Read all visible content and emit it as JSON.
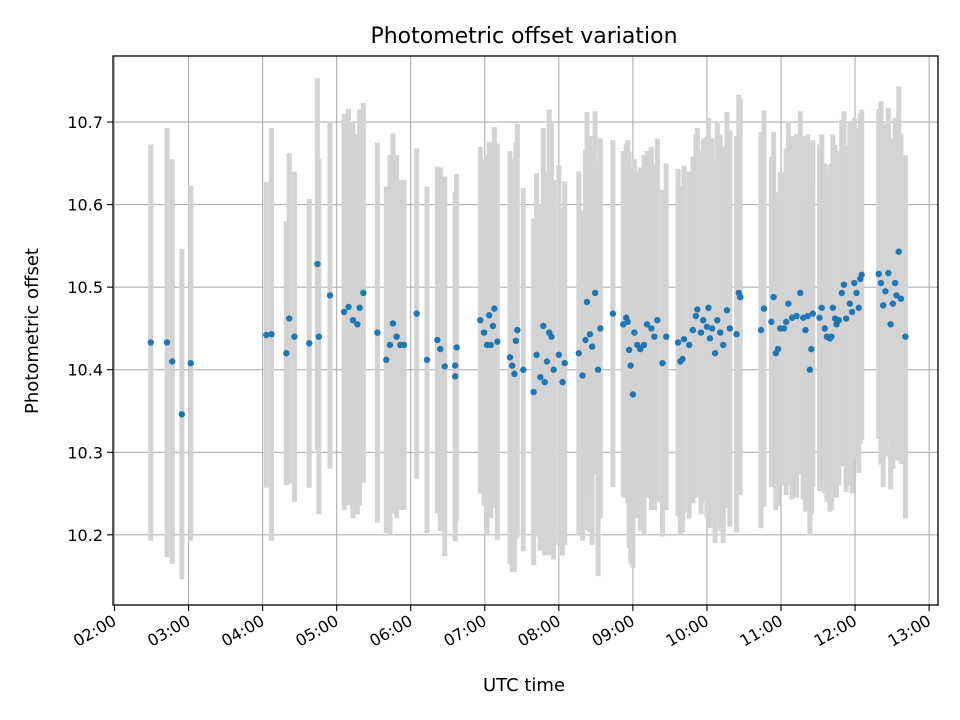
{
  "chart_data": {
    "type": "scatter",
    "title": "Photometric offset variation",
    "xlabel": "UTC time",
    "ylabel": "Photometric offset",
    "grid": true,
    "legend": "none",
    "x_unit": "hours UTC",
    "xlim": [
      1.98,
      13.12
    ],
    "ylim": [
      10.115,
      10.78
    ],
    "xticks": [
      {
        "value": 2,
        "label": "02:00"
      },
      {
        "value": 3,
        "label": "03:00"
      },
      {
        "value": 4,
        "label": "04:00"
      },
      {
        "value": 5,
        "label": "05:00"
      },
      {
        "value": 6,
        "label": "06:00"
      },
      {
        "value": 7,
        "label": "07:00"
      },
      {
        "value": 8,
        "label": "08:00"
      },
      {
        "value": 9,
        "label": "09:00"
      },
      {
        "value": 10,
        "label": "10:00"
      },
      {
        "value": 11,
        "label": "11:00"
      },
      {
        "value": 12,
        "label": "12:00"
      },
      {
        "value": 13,
        "label": "13:00"
      }
    ],
    "yticks": [
      {
        "value": 10.2,
        "label": "10.2"
      },
      {
        "value": 10.3,
        "label": "10.3"
      },
      {
        "value": 10.4,
        "label": "10.4"
      },
      {
        "value": 10.5,
        "label": "10.5"
      },
      {
        "value": 10.6,
        "label": "10.6"
      },
      {
        "value": 10.7,
        "label": "10.7"
      }
    ],
    "colors": {
      "points": "#1f77b4",
      "errorbars": "#d3d3d3",
      "grid": "#b0b0b0",
      "axes": "#000000"
    },
    "series": [
      {
        "name": "Photometric offset",
        "points": [
          [
            2.49,
            10.433,
            0.24
          ],
          [
            2.71,
            10.433,
            0.26
          ],
          [
            2.78,
            10.41,
            0.245
          ],
          [
            2.91,
            10.346,
            0.2
          ],
          [
            3.03,
            10.408,
            0.215
          ],
          [
            4.05,
            10.442,
            0.185
          ],
          [
            4.12,
            10.443,
            0.25
          ],
          [
            4.32,
            10.42,
            0.16
          ],
          [
            4.36,
            10.462,
            0.2
          ],
          [
            4.43,
            10.44,
            0.2
          ],
          [
            4.63,
            10.432,
            0.175
          ],
          [
            4.74,
            10.528,
            0.225
          ],
          [
            4.76,
            10.44,
            0.215
          ],
          [
            4.91,
            10.49,
            0.21
          ],
          [
            5.1,
            10.47,
            0.24
          ],
          [
            5.16,
            10.476,
            0.24
          ],
          [
            5.22,
            10.46,
            0.24
          ],
          [
            5.28,
            10.455,
            0.23
          ],
          [
            5.31,
            10.475,
            0.24
          ],
          [
            5.36,
            10.493,
            0.23
          ],
          [
            5.55,
            10.445,
            0.23
          ],
          [
            5.67,
            10.412,
            0.21
          ],
          [
            5.72,
            10.43,
            0.23
          ],
          [
            5.76,
            10.456,
            0.23
          ],
          [
            5.81,
            10.44,
            0.22
          ],
          [
            5.86,
            10.43,
            0.2
          ],
          [
            5.91,
            10.43,
            0.2
          ],
          [
            6.08,
            10.468,
            0.2
          ],
          [
            6.22,
            10.412,
            0.21
          ],
          [
            6.36,
            10.436,
            0.21
          ],
          [
            6.4,
            10.425,
            0.22
          ],
          [
            6.46,
            10.404,
            0.23
          ],
          [
            6.6,
            10.392,
            0.2
          ],
          [
            6.6,
            10.405,
            0.21
          ],
          [
            6.62,
            10.427,
            0.21
          ],
          [
            6.94,
            10.46,
            0.21
          ],
          [
            6.99,
            10.445,
            0.21
          ],
          [
            7.03,
            10.43,
            0.23
          ],
          [
            7.06,
            10.466,
            0.21
          ],
          [
            7.08,
            10.43,
            0.21
          ],
          [
            7.11,
            10.453,
            0.22
          ],
          [
            7.13,
            10.474,
            0.22
          ],
          [
            7.17,
            10.434,
            0.24
          ],
          [
            7.34,
            10.415,
            0.25
          ],
          [
            7.37,
            10.405,
            0.25
          ],
          [
            7.4,
            10.395,
            0.24
          ],
          [
            7.42,
            10.435,
            0.24
          ],
          [
            7.44,
            10.448,
            0.25
          ],
          [
            7.52,
            10.4,
            0.22
          ],
          [
            7.66,
            10.373,
            0.21
          ],
          [
            7.7,
            10.418,
            0.22
          ],
          [
            7.75,
            10.391,
            0.21
          ],
          [
            7.79,
            10.453,
            0.24
          ],
          [
            7.81,
            10.385,
            0.21
          ],
          [
            7.84,
            10.41,
            0.23
          ],
          [
            7.87,
            10.445,
            0.27
          ],
          [
            7.9,
            10.44,
            0.26
          ],
          [
            7.93,
            10.4,
            0.23
          ],
          [
            8.0,
            10.418,
            0.23
          ],
          [
            8.05,
            10.385,
            0.21
          ],
          [
            8.08,
            10.408,
            0.22
          ],
          [
            8.27,
            10.42,
            0.22
          ],
          [
            8.32,
            10.393,
            0.2
          ],
          [
            8.36,
            10.436,
            0.23
          ],
          [
            8.38,
            10.482,
            0.23
          ],
          [
            8.42,
            10.443,
            0.24
          ],
          [
            8.45,
            10.428,
            0.24
          ],
          [
            8.49,
            10.493,
            0.22
          ],
          [
            8.53,
            10.4,
            0.25
          ],
          [
            8.56,
            10.45,
            0.23
          ],
          [
            8.73,
            10.468,
            0.21
          ],
          [
            8.87,
            10.455,
            0.21
          ],
          [
            8.91,
            10.463,
            0.21
          ],
          [
            8.93,
            10.458,
            0.22
          ],
          [
            8.95,
            10.424,
            0.24
          ],
          [
            8.97,
            10.405,
            0.24
          ],
          [
            9.0,
            10.37,
            0.21
          ],
          [
            9.02,
            10.445,
            0.21
          ],
          [
            9.06,
            10.43,
            0.21
          ],
          [
            9.1,
            10.425,
            0.22
          ],
          [
            9.15,
            10.43,
            0.23
          ],
          [
            9.19,
            10.455,
            0.21
          ],
          [
            9.25,
            10.45,
            0.22
          ],
          [
            9.29,
            10.44,
            0.21
          ],
          [
            9.33,
            10.46,
            0.22
          ],
          [
            9.4,
            10.408,
            0.21
          ],
          [
            9.45,
            10.44,
            0.21
          ],
          [
            9.61,
            10.433,
            0.21
          ],
          [
            9.64,
            10.41,
            0.21
          ],
          [
            9.67,
            10.413,
            0.21
          ],
          [
            9.69,
            10.437,
            0.21
          ],
          [
            9.76,
            10.43,
            0.21
          ],
          [
            9.81,
            10.448,
            0.21
          ],
          [
            9.85,
            10.465,
            0.22
          ],
          [
            9.87,
            10.473,
            0.22
          ],
          [
            9.92,
            10.445,
            0.22
          ],
          [
            9.95,
            10.46,
            0.22
          ],
          [
            10.0,
            10.452,
            0.23
          ],
          [
            10.02,
            10.475,
            0.23
          ],
          [
            10.04,
            10.438,
            0.23
          ],
          [
            10.07,
            10.45,
            0.23
          ],
          [
            10.11,
            10.42,
            0.23
          ],
          [
            10.14,
            10.46,
            0.24
          ],
          [
            10.18,
            10.445,
            0.24
          ],
          [
            10.22,
            10.43,
            0.24
          ],
          [
            10.27,
            10.472,
            0.24
          ],
          [
            10.31,
            10.45,
            0.24
          ],
          [
            10.4,
            10.443,
            0.24
          ],
          [
            10.43,
            10.493,
            0.24
          ],
          [
            10.45,
            10.488,
            0.24
          ],
          [
            10.73,
            10.448,
            0.24
          ],
          [
            10.77,
            10.474,
            0.24
          ],
          [
            10.87,
            10.458,
            0.2
          ],
          [
            10.9,
            10.488,
            0.2
          ],
          [
            10.93,
            10.42,
            0.19
          ],
          [
            10.96,
            10.425,
            0.19
          ],
          [
            10.99,
            10.45,
            0.19
          ],
          [
            11.04,
            10.45,
            0.19
          ],
          [
            11.07,
            10.458,
            0.21
          ],
          [
            11.1,
            10.48,
            0.22
          ],
          [
            11.15,
            10.463,
            0.22
          ],
          [
            11.21,
            10.465,
            0.22
          ],
          [
            11.26,
            10.493,
            0.22
          ],
          [
            11.3,
            10.463,
            0.22
          ],
          [
            11.33,
            10.448,
            0.22
          ],
          [
            11.36,
            10.465,
            0.22
          ],
          [
            11.39,
            10.4,
            0.2
          ],
          [
            11.41,
            10.425,
            0.2
          ],
          [
            11.43,
            10.468,
            0.21
          ],
          [
            11.52,
            10.463,
            0.21
          ],
          [
            11.55,
            10.475,
            0.21
          ],
          [
            11.59,
            10.45,
            0.2
          ],
          [
            11.62,
            10.44,
            0.2
          ],
          [
            11.66,
            10.438,
            0.21
          ],
          [
            11.68,
            10.44,
            0.21
          ],
          [
            11.7,
            10.475,
            0.21
          ],
          [
            11.73,
            10.462,
            0.21
          ],
          [
            11.75,
            10.455,
            0.21
          ],
          [
            11.78,
            10.46,
            0.2
          ],
          [
            11.82,
            10.493,
            0.21
          ],
          [
            11.85,
            10.503,
            0.21
          ],
          [
            11.88,
            10.462,
            0.21
          ],
          [
            11.93,
            10.48,
            0.22
          ],
          [
            11.96,
            10.47,
            0.22
          ],
          [
            11.99,
            10.505,
            0.2
          ],
          [
            12.02,
            10.493,
            0.2
          ],
          [
            12.05,
            10.475,
            0.2
          ],
          [
            12.07,
            10.51,
            0.2
          ],
          [
            12.09,
            10.515,
            0.2
          ],
          [
            12.32,
            10.516,
            0.2
          ],
          [
            12.35,
            10.505,
            0.22
          ],
          [
            12.38,
            10.478,
            0.22
          ],
          [
            12.41,
            10.495,
            0.2
          ],
          [
            12.45,
            10.517,
            0.2
          ],
          [
            12.48,
            10.455,
            0.2
          ],
          [
            12.51,
            10.48,
            0.2
          ],
          [
            12.54,
            10.505,
            0.2
          ],
          [
            12.56,
            10.49,
            0.2
          ],
          [
            12.59,
            10.543,
            0.2
          ],
          [
            12.62,
            10.486,
            0.2
          ],
          [
            12.68,
            10.44,
            0.22
          ]
        ]
      }
    ]
  }
}
